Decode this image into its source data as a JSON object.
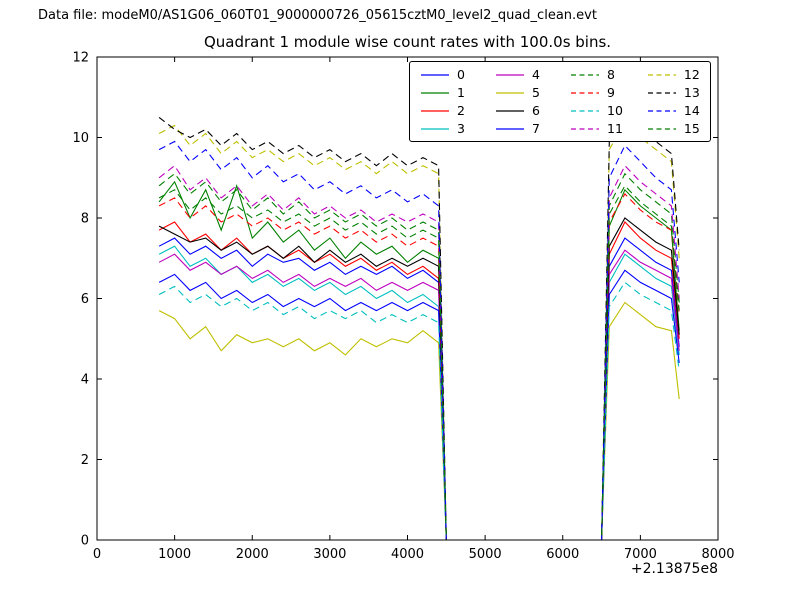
{
  "header": {
    "text": "Data file: modeM0/AS1G06_060T01_9000000726_05615cztM0_level2_quad_clean.evt"
  },
  "chart_data": {
    "type": "line",
    "title": "Quadrant 1 module wise count rates with 100.0s bins.",
    "xlabel": "",
    "ylabel": "",
    "xlim": [
      0,
      8000
    ],
    "ylim": [
      0,
      12
    ],
    "xticks": [
      0,
      1000,
      2000,
      3000,
      4000,
      5000,
      6000,
      7000,
      8000
    ],
    "yticks": [
      0,
      2,
      4,
      6,
      8,
      10,
      12
    ],
    "x_offset_text": "+2.13875e8",
    "grid": false,
    "legend_position": "upper center",
    "x": [
      800,
      1000,
      1200,
      1400,
      1600,
      1800,
      2000,
      2200,
      2400,
      2600,
      2800,
      3000,
      3200,
      3400,
      3600,
      3800,
      4000,
      4200,
      4400,
      4500,
      6500,
      6600,
      6800,
      7000,
      7200,
      7400,
      7500
    ],
    "series": [
      {
        "name": "0",
        "color": "#0000ff",
        "dash": "solid",
        "values": [
          7.3,
          7.5,
          7.1,
          7.3,
          7.0,
          7.2,
          6.8,
          7.1,
          6.9,
          7.0,
          6.7,
          6.9,
          6.6,
          6.8,
          6.6,
          6.8,
          6.5,
          6.7,
          6.4,
          0,
          0,
          6.8,
          7.5,
          7.2,
          6.9,
          6.7,
          4.8
        ]
      },
      {
        "name": "1",
        "color": "#008000",
        "dash": "solid",
        "values": [
          8.4,
          8.9,
          8.0,
          8.7,
          7.7,
          8.8,
          7.5,
          7.9,
          7.4,
          7.7,
          7.2,
          7.5,
          7.0,
          7.4,
          7.1,
          7.3,
          6.9,
          7.2,
          7.0,
          0,
          0,
          7.8,
          8.7,
          8.3,
          8.0,
          7.7,
          5.2
        ]
      },
      {
        "name": "2",
        "color": "#ff0000",
        "dash": "solid",
        "values": [
          7.7,
          7.9,
          7.4,
          7.6,
          7.2,
          7.5,
          7.1,
          7.3,
          7.0,
          7.2,
          6.9,
          7.1,
          6.8,
          7.0,
          6.7,
          6.9,
          6.6,
          6.8,
          6.5,
          0,
          0,
          7.1,
          7.9,
          7.5,
          7.2,
          7.0,
          5.0
        ]
      },
      {
        "name": "3",
        "color": "#00bfbf",
        "dash": "solid",
        "values": [
          7.1,
          7.3,
          6.8,
          7.0,
          6.6,
          6.8,
          6.4,
          6.6,
          6.3,
          6.5,
          6.2,
          6.4,
          6.1,
          6.3,
          6.0,
          6.2,
          5.9,
          6.1,
          5.8,
          0,
          0,
          6.4,
          7.1,
          6.8,
          6.5,
          6.3,
          4.6
        ]
      },
      {
        "name": "4",
        "color": "#bf00bf",
        "dash": "solid",
        "values": [
          6.9,
          7.1,
          6.7,
          6.9,
          6.6,
          6.8,
          6.5,
          6.7,
          6.4,
          6.6,
          6.3,
          6.5,
          6.3,
          6.5,
          6.2,
          6.4,
          6.2,
          6.4,
          6.2,
          0,
          0,
          6.6,
          7.2,
          6.9,
          6.7,
          6.5,
          4.7
        ]
      },
      {
        "name": "5",
        "color": "#bfbf00",
        "dash": "solid",
        "values": [
          5.7,
          5.5,
          5.0,
          5.3,
          4.7,
          5.1,
          4.9,
          5.0,
          4.8,
          5.0,
          4.7,
          4.9,
          4.6,
          5.0,
          4.8,
          5.0,
          4.9,
          5.2,
          4.9,
          0,
          0,
          5.3,
          5.9,
          5.6,
          5.3,
          5.2,
          3.5
        ]
      },
      {
        "name": "6",
        "color": "#000000",
        "dash": "solid",
        "values": [
          7.8,
          7.6,
          7.4,
          7.5,
          7.2,
          7.4,
          7.1,
          7.3,
          7.0,
          7.3,
          6.9,
          7.2,
          6.9,
          7.1,
          6.8,
          7.0,
          6.8,
          7.0,
          6.8,
          0,
          0,
          7.3,
          8.0,
          7.7,
          7.4,
          7.2,
          5.1
        ]
      },
      {
        "name": "7",
        "color": "#0000ff",
        "dash": "solid",
        "values": [
          6.4,
          6.6,
          6.2,
          6.4,
          6.0,
          6.2,
          5.9,
          6.1,
          5.8,
          6.0,
          5.8,
          6.0,
          5.7,
          5.9,
          5.7,
          5.9,
          5.7,
          5.9,
          5.7,
          0,
          0,
          6.1,
          6.7,
          6.4,
          6.2,
          6.0,
          4.4
        ]
      },
      {
        "name": "8",
        "color": "#008000",
        "dash": "dashed",
        "values": [
          8.8,
          9.1,
          8.6,
          8.9,
          8.4,
          8.7,
          8.2,
          8.5,
          8.1,
          8.4,
          8.0,
          8.2,
          7.9,
          8.1,
          7.8,
          8.0,
          7.7,
          7.9,
          7.7,
          0,
          0,
          8.3,
          9.1,
          8.7,
          8.4,
          8.1,
          5.9
        ]
      },
      {
        "name": "9",
        "color": "#ff0000",
        "dash": "dashed",
        "values": [
          8.3,
          8.5,
          8.0,
          8.3,
          7.9,
          8.1,
          7.8,
          8.0,
          7.7,
          7.9,
          7.6,
          7.8,
          7.5,
          7.7,
          7.4,
          7.6,
          7.3,
          7.5,
          7.3,
          0,
          0,
          7.9,
          8.6,
          8.2,
          7.9,
          7.7,
          5.6
        ]
      },
      {
        "name": "10",
        "color": "#00bfbf",
        "dash": "dashed",
        "values": [
          6.1,
          6.3,
          5.9,
          6.1,
          5.8,
          6.0,
          5.7,
          5.9,
          5.6,
          5.8,
          5.5,
          5.7,
          5.5,
          5.7,
          5.4,
          5.6,
          5.4,
          5.6,
          5.4,
          0,
          0,
          5.8,
          6.4,
          6.1,
          5.9,
          5.7,
          4.2
        ]
      },
      {
        "name": "11",
        "color": "#bf00bf",
        "dash": "dashed",
        "values": [
          9.0,
          9.3,
          8.7,
          9.0,
          8.5,
          8.8,
          8.3,
          8.6,
          8.2,
          8.5,
          8.1,
          8.3,
          8.0,
          8.2,
          7.9,
          8.1,
          7.9,
          8.1,
          7.9,
          0,
          0,
          8.5,
          9.3,
          8.9,
          8.6,
          8.3,
          6.0
        ]
      },
      {
        "name": "12",
        "color": "#bfbf00",
        "dash": "dashed",
        "values": [
          10.1,
          10.3,
          9.8,
          10.1,
          9.6,
          9.9,
          9.5,
          9.7,
          9.4,
          9.6,
          9.3,
          9.5,
          9.2,
          9.4,
          9.1,
          9.4,
          9.1,
          9.3,
          9.1,
          0,
          0,
          9.7,
          10.4,
          10.0,
          9.7,
          9.4,
          7.0
        ]
      },
      {
        "name": "13",
        "color": "#000000",
        "dash": "dashed",
        "values": [
          10.5,
          10.2,
          10.0,
          10.2,
          9.8,
          10.1,
          9.7,
          9.9,
          9.6,
          9.8,
          9.5,
          9.7,
          9.4,
          9.6,
          9.3,
          9.6,
          9.3,
          9.5,
          9.3,
          0,
          0,
          9.9,
          10.6,
          10.2,
          9.9,
          9.6,
          7.2
        ]
      },
      {
        "name": "14",
        "color": "#0000ff",
        "dash": "dashed",
        "values": [
          9.7,
          9.9,
          9.4,
          9.7,
          9.2,
          9.5,
          9.0,
          9.3,
          8.9,
          9.1,
          8.7,
          8.9,
          8.6,
          8.8,
          8.5,
          8.7,
          8.4,
          8.6,
          8.3,
          0,
          0,
          9.0,
          9.8,
          9.4,
          9.0,
          8.7,
          6.4
        ]
      },
      {
        "name": "15",
        "color": "#008000",
        "dash": "dashed",
        "values": [
          8.5,
          8.7,
          8.2,
          8.5,
          8.1,
          8.3,
          8.0,
          8.2,
          7.9,
          8.1,
          7.8,
          8.0,
          7.7,
          7.9,
          7.6,
          7.8,
          7.5,
          7.7,
          7.5,
          0,
          0,
          8.1,
          8.8,
          8.4,
          8.1,
          7.8,
          5.7
        ]
      }
    ]
  }
}
